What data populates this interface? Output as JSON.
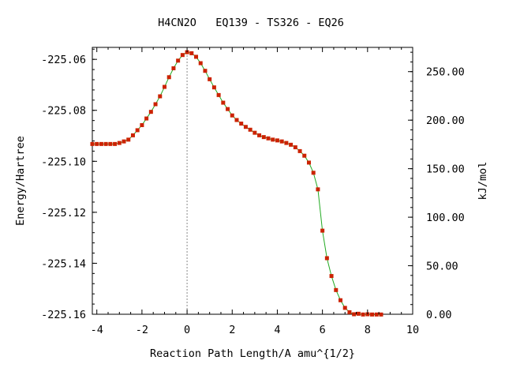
{
  "chart_data": {
    "type": "line",
    "title": "H4CN2O   EQ139 - TS326 - EQ26",
    "xlabel": "Reaction Path Length/A amu^{1/2}",
    "ylabel": "Energy/Hartree",
    "y2label": "kJ/mol",
    "xlim": [
      -4.2,
      10
    ],
    "ylim": [
      -225.16,
      -225.0553
    ],
    "y2lim": [
      0,
      275.0
    ],
    "x_ticks": [
      -4,
      -2,
      0,
      2,
      4,
      6,
      8,
      10
    ],
    "x_tick_labels": [
      "-4",
      "-2",
      "0",
      "2",
      "4",
      "6",
      "8",
      "10"
    ],
    "y_ticks": [
      -225.06,
      -225.08,
      -225.1,
      -225.12,
      -225.14,
      -225.16
    ],
    "y_tick_labels": [
      "-225.06",
      "-225.08",
      "-225.10",
      "-225.12",
      "-225.14",
      "-225.16"
    ],
    "y2_ticks": [
      250,
      200,
      150,
      100,
      50,
      0
    ],
    "y2_tick_labels": [
      "250.00",
      "200.00",
      "150.00",
      "100.00",
      "50.00",
      "0.00"
    ],
    "ts_marker_x": 0,
    "grid": false,
    "colors": {
      "line": "#22aa22",
      "marker": "#cc2200",
      "ts_line": "#888888",
      "axis": "#000000"
    },
    "series": [
      {
        "points": [
          [
            -4.2,
            -225.0932
          ],
          [
            -4.0,
            -225.0932
          ],
          [
            -3.8,
            -225.0932
          ],
          [
            -3.6,
            -225.0932
          ],
          [
            -3.4,
            -225.0932
          ],
          [
            -3.2,
            -225.0932
          ],
          [
            -3.0,
            -225.0928
          ],
          [
            -2.8,
            -225.0922
          ],
          [
            -2.6,
            -225.0915
          ],
          [
            -2.4,
            -225.0898
          ],
          [
            -2.2,
            -225.0878
          ],
          [
            -2.0,
            -225.0858
          ],
          [
            -1.8,
            -225.0832
          ],
          [
            -1.6,
            -225.0806
          ],
          [
            -1.4,
            -225.0776
          ],
          [
            -1.2,
            -225.0745
          ],
          [
            -1.0,
            -225.0708
          ],
          [
            -0.8,
            -225.067
          ],
          [
            -0.6,
            -225.0635
          ],
          [
            -0.4,
            -225.0605
          ],
          [
            -0.2,
            -225.0583
          ],
          [
            0.0,
            -225.0572
          ],
          [
            0.2,
            -225.0576
          ],
          [
            0.4,
            -225.059
          ],
          [
            0.6,
            -225.0615
          ],
          [
            0.8,
            -225.0645
          ],
          [
            1.0,
            -225.0678
          ],
          [
            1.2,
            -225.071
          ],
          [
            1.4,
            -225.074
          ],
          [
            1.6,
            -225.077
          ],
          [
            1.8,
            -225.0795
          ],
          [
            2.0,
            -225.082
          ],
          [
            2.2,
            -225.0838
          ],
          [
            2.4,
            -225.0852
          ],
          [
            2.6,
            -225.0865
          ],
          [
            2.8,
            -225.0876
          ],
          [
            3.0,
            -225.0888
          ],
          [
            3.2,
            -225.0898
          ],
          [
            3.4,
            -225.0905
          ],
          [
            3.6,
            -225.091
          ],
          [
            3.8,
            -225.0915
          ],
          [
            4.0,
            -225.0918
          ],
          [
            4.2,
            -225.0922
          ],
          [
            4.4,
            -225.0928
          ],
          [
            4.6,
            -225.0935
          ],
          [
            4.8,
            -225.0945
          ],
          [
            5.0,
            -225.096
          ],
          [
            5.2,
            -225.0978
          ],
          [
            5.4,
            -225.1005
          ],
          [
            5.6,
            -225.1045
          ],
          [
            5.8,
            -225.111
          ],
          [
            6.0,
            -225.1272
          ],
          [
            6.2,
            -225.138
          ],
          [
            6.4,
            -225.145
          ],
          [
            6.6,
            -225.1505
          ],
          [
            6.8,
            -225.1545
          ],
          [
            7.0,
            -225.1575
          ],
          [
            7.2,
            -225.1592
          ],
          [
            7.4,
            -225.16
          ],
          [
            7.6,
            -225.1598
          ],
          [
            7.8,
            -225.1601
          ],
          [
            8.0,
            -225.16
          ],
          [
            8.2,
            -225.1601
          ],
          [
            8.4,
            -225.1601
          ],
          [
            8.6,
            -225.1601
          ]
        ]
      }
    ]
  }
}
